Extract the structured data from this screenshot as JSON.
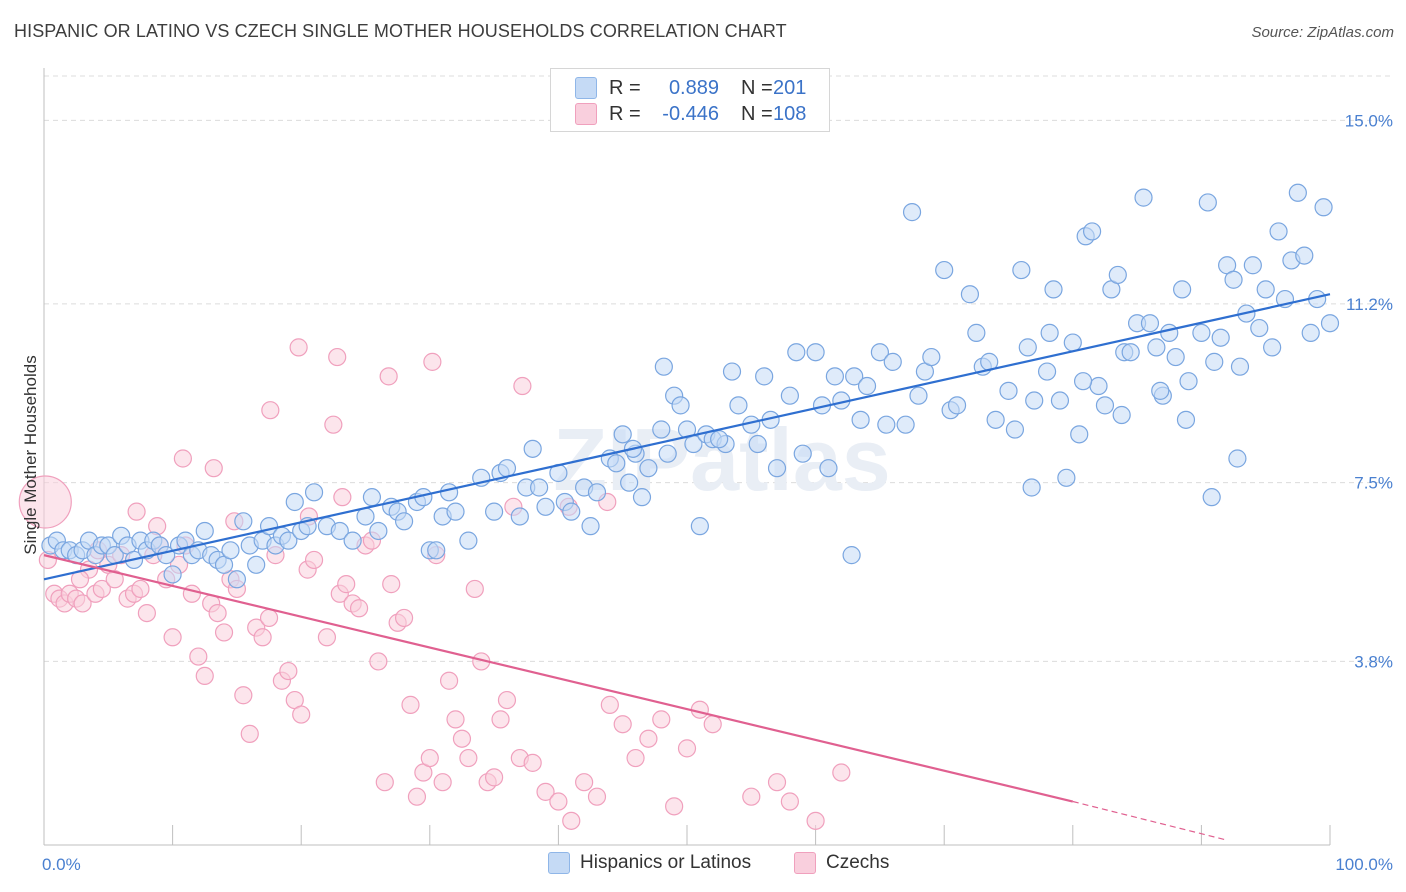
{
  "title": "HISPANIC OR LATINO VS CZECH SINGLE MOTHER HOUSEHOLDS CORRELATION CHART",
  "source": "Source: ZipAtlas.com",
  "watermark": "ZIPatlas",
  "legend": {
    "rows": [
      {
        "r_label": "R =",
        "r_value": "0.889",
        "n_label": "N =",
        "n_value": "201",
        "color": "#8fb6e8",
        "fill": "#c5daf5"
      },
      {
        "r_label": "R =",
        "r_value": "-0.446",
        "n_label": "N =",
        "n_value": "108",
        "color": "#f0a0bd",
        "fill": "#f9cfdd"
      }
    ]
  },
  "bottom_legend": [
    {
      "label": "Hispanics or Latinos",
      "fill": "#c5daf5",
      "stroke": "#8fb6e8"
    },
    {
      "label": "Czechs",
      "fill": "#f9cfdd",
      "stroke": "#f0a0bd"
    }
  ],
  "chart_data": {
    "type": "scatter",
    "title": "HISPANIC OR LATINO VS CZECH SINGLE MOTHER HOUSEHOLDS CORRELATION CHART",
    "xlabel": "",
    "ylabel": "Single Mother Households",
    "xlim": [
      0,
      100
    ],
    "ylim": [
      0,
      16
    ],
    "x_tick_labels": [
      "0.0%",
      "100.0%"
    ],
    "y_ticks": [
      3.8,
      7.5,
      11.2,
      15.0
    ],
    "y_tick_labels": [
      "3.8%",
      "7.5%",
      "11.2%",
      "15.0%"
    ],
    "grid": true,
    "series": [
      {
        "name": "Hispanics or Latinos",
        "color": "#4a86d8",
        "fill": "#c5daf5",
        "stroke": "#7aa6e0",
        "trend": {
          "x": [
            0,
            100
          ],
          "y": [
            5.5,
            11.4
          ],
          "color": "#2f6fd0"
        },
        "points": [
          [
            0.5,
            6.2
          ],
          [
            1,
            6.3
          ],
          [
            1.5,
            6.1
          ],
          [
            2,
            6.1
          ],
          [
            2.5,
            6.0
          ],
          [
            3,
            6.1
          ],
          [
            3.5,
            6.3
          ],
          [
            4,
            6.0
          ],
          [
            4.5,
            6.2
          ],
          [
            5,
            6.2
          ],
          [
            5.5,
            6.0
          ],
          [
            6,
            6.4
          ],
          [
            6.5,
            6.2
          ],
          [
            7,
            5.9
          ],
          [
            7.5,
            6.3
          ],
          [
            8,
            6.1
          ],
          [
            8.5,
            6.3
          ],
          [
            9,
            6.2
          ],
          [
            9.5,
            6.0
          ],
          [
            10,
            5.6
          ],
          [
            10.5,
            6.2
          ],
          [
            11,
            6.3
          ],
          [
            11.5,
            6.0
          ],
          [
            12,
            6.1
          ],
          [
            12.5,
            6.5
          ],
          [
            13,
            6.0
          ],
          [
            13.5,
            5.9
          ],
          [
            14,
            5.8
          ],
          [
            14.5,
            6.1
          ],
          [
            15,
            5.5
          ],
          [
            15.5,
            6.7
          ],
          [
            16,
            6.2
          ],
          [
            16.5,
            5.8
          ],
          [
            17,
            6.3
          ],
          [
            17.5,
            6.6
          ],
          [
            18,
            6.2
          ],
          [
            18.5,
            6.4
          ],
          [
            19,
            6.3
          ],
          [
            19.5,
            7.1
          ],
          [
            20,
            6.5
          ],
          [
            20.5,
            6.6
          ],
          [
            21,
            7.3
          ],
          [
            22,
            6.6
          ],
          [
            23,
            6.5
          ],
          [
            24,
            6.3
          ],
          [
            25,
            6.8
          ],
          [
            25.5,
            7.2
          ],
          [
            26,
            6.5
          ],
          [
            27,
            7.0
          ],
          [
            27.5,
            6.9
          ],
          [
            28,
            6.7
          ],
          [
            29,
            7.1
          ],
          [
            29.5,
            7.2
          ],
          [
            30,
            6.1
          ],
          [
            30.5,
            6.1
          ],
          [
            31,
            6.8
          ],
          [
            31.5,
            7.3
          ],
          [
            32,
            6.9
          ],
          [
            33,
            6.3
          ],
          [
            34,
            7.6
          ],
          [
            35,
            6.9
          ],
          [
            35.5,
            7.7
          ],
          [
            36,
            7.8
          ],
          [
            37,
            6.8
          ],
          [
            37.5,
            7.4
          ],
          [
            38,
            8.2
          ],
          [
            38.5,
            7.4
          ],
          [
            39,
            7.0
          ],
          [
            40,
            7.7
          ],
          [
            40.5,
            7.1
          ],
          [
            41,
            6.9
          ],
          [
            42,
            7.4
          ],
          [
            42.5,
            6.6
          ],
          [
            43,
            7.3
          ],
          [
            44,
            8.0
          ],
          [
            44.5,
            7.9
          ],
          [
            45,
            8.5
          ],
          [
            45.5,
            7.5
          ],
          [
            46,
            8.1
          ],
          [
            46.5,
            7.2
          ],
          [
            47,
            7.8
          ],
          [
            48,
            8.6
          ],
          [
            48.5,
            8.1
          ],
          [
            49,
            9.3
          ],
          [
            49.5,
            9.1
          ],
          [
            50,
            8.6
          ],
          [
            50.5,
            8.3
          ],
          [
            51,
            6.6
          ],
          [
            51.5,
            8.5
          ],
          [
            52,
            8.4
          ],
          [
            53,
            8.3
          ],
          [
            53.5,
            9.8
          ],
          [
            54,
            9.1
          ],
          [
            55,
            8.7
          ],
          [
            55.5,
            8.3
          ],
          [
            56,
            9.7
          ],
          [
            56.5,
            8.8
          ],
          [
            57,
            7.8
          ],
          [
            58,
            9.3
          ],
          [
            58.5,
            10.2
          ],
          [
            59,
            8.1
          ],
          [
            60,
            10.2
          ],
          [
            60.5,
            9.1
          ],
          [
            61,
            7.8
          ],
          [
            61.5,
            9.7
          ],
          [
            62,
            9.2
          ],
          [
            63,
            9.7
          ],
          [
            63.5,
            8.8
          ],
          [
            64,
            9.5
          ],
          [
            65,
            10.2
          ],
          [
            65.5,
            8.7
          ],
          [
            66,
            10.0
          ],
          [
            67,
            8.7
          ],
          [
            67.5,
            13.1
          ],
          [
            68,
            9.3
          ],
          [
            68.5,
            9.8
          ],
          [
            69,
            10.1
          ],
          [
            70,
            11.9
          ],
          [
            70.5,
            9.0
          ],
          [
            71,
            9.1
          ],
          [
            72,
            11.4
          ],
          [
            72.5,
            10.6
          ],
          [
            73,
            9.9
          ],
          [
            73.5,
            10.0
          ],
          [
            74,
            8.8
          ],
          [
            75,
            9.4
          ],
          [
            75.5,
            8.6
          ],
          [
            76,
            11.9
          ],
          [
            76.5,
            10.3
          ],
          [
            77,
            9.2
          ],
          [
            78,
            9.8
          ],
          [
            78.5,
            11.5
          ],
          [
            79,
            9.2
          ],
          [
            79.5,
            7.6
          ],
          [
            80,
            10.4
          ],
          [
            80.5,
            8.5
          ],
          [
            81,
            12.6
          ],
          [
            81.5,
            12.7
          ],
          [
            82,
            9.5
          ],
          [
            82.5,
            9.1
          ],
          [
            83,
            11.5
          ],
          [
            83.5,
            11.8
          ],
          [
            84,
            10.2
          ],
          [
            85,
            10.8
          ],
          [
            85.5,
            13.4
          ],
          [
            86,
            10.8
          ],
          [
            86.5,
            10.3
          ],
          [
            87,
            9.3
          ],
          [
            87.5,
            10.6
          ],
          [
            88,
            10.1
          ],
          [
            88.5,
            11.5
          ],
          [
            89,
            9.6
          ],
          [
            90,
            10.6
          ],
          [
            90.5,
            13.3
          ],
          [
            91,
            10.0
          ],
          [
            91.5,
            10.5
          ],
          [
            92,
            12.0
          ],
          [
            92.5,
            11.7
          ],
          [
            93,
            9.9
          ],
          [
            93.5,
            11.0
          ],
          [
            94,
            12.0
          ],
          [
            94.5,
            10.7
          ],
          [
            95,
            11.5
          ],
          [
            95.5,
            10.3
          ],
          [
            96,
            12.7
          ],
          [
            96.5,
            11.3
          ],
          [
            97,
            12.1
          ],
          [
            97.5,
            13.5
          ],
          [
            98,
            12.2
          ],
          [
            98.5,
            10.6
          ],
          [
            99,
            11.3
          ],
          [
            99.5,
            13.2
          ],
          [
            100,
            10.8
          ],
          [
            52.5,
            8.4
          ],
          [
            48.2,
            9.9
          ],
          [
            45.8,
            8.2
          ],
          [
            62.8,
            6.0
          ],
          [
            76.8,
            7.4
          ],
          [
            83.8,
            8.9
          ],
          [
            88.8,
            8.8
          ],
          [
            92.8,
            8.0
          ],
          [
            90.8,
            7.2
          ],
          [
            86.8,
            9.4
          ],
          [
            84.5,
            10.2
          ],
          [
            80.8,
            9.6
          ],
          [
            78.2,
            10.6
          ]
        ]
      },
      {
        "name": "Czechs",
        "color": "#e06090",
        "fill": "#f9cfdd",
        "stroke": "#f0a0bd",
        "trend": {
          "x": [
            0,
            80
          ],
          "y": [
            6.0,
            0.9
          ],
          "color": "#e06090"
        },
        "trend_dashed": {
          "x": [
            80,
            92
          ],
          "y": [
            0.9,
            0.1
          ]
        },
        "points": [
          [
            0.3,
            5.9
          ],
          [
            0.8,
            5.2
          ],
          [
            1.2,
            5.1
          ],
          [
            1.6,
            5.0
          ],
          [
            2,
            5.2
          ],
          [
            2.5,
            5.1
          ],
          [
            3,
            5.0
          ],
          [
            3.5,
            5.7
          ],
          [
            4,
            5.2
          ],
          [
            4.5,
            5.3
          ],
          [
            5,
            5.8
          ],
          [
            5.5,
            5.5
          ],
          [
            6,
            6.0
          ],
          [
            6.5,
            5.1
          ],
          [
            7,
            5.2
          ],
          [
            7.5,
            5.3
          ],
          [
            8,
            4.8
          ],
          [
            8.5,
            6.0
          ],
          [
            9,
            6.2
          ],
          [
            9.5,
            5.5
          ],
          [
            10,
            4.3
          ],
          [
            10.5,
            5.8
          ],
          [
            11,
            6.2
          ],
          [
            11.5,
            5.2
          ],
          [
            12,
            3.9
          ],
          [
            12.5,
            3.5
          ],
          [
            13,
            5.0
          ],
          [
            13.5,
            4.8
          ],
          [
            14,
            4.4
          ],
          [
            14.5,
            5.5
          ],
          [
            15,
            5.3
          ],
          [
            15.5,
            3.1
          ],
          [
            16,
            2.3
          ],
          [
            16.5,
            4.5
          ],
          [
            17,
            4.3
          ],
          [
            17.5,
            4.7
          ],
          [
            18,
            6.0
          ],
          [
            18.5,
            3.4
          ],
          [
            19,
            3.6
          ],
          [
            19.5,
            3.0
          ],
          [
            20,
            2.7
          ],
          [
            20.5,
            5.7
          ],
          [
            21,
            5.9
          ],
          [
            22,
            4.3
          ],
          [
            22.5,
            8.7
          ],
          [
            23,
            5.2
          ],
          [
            23.5,
            5.4
          ],
          [
            24,
            5.0
          ],
          [
            24.5,
            4.9
          ],
          [
            25,
            6.2
          ],
          [
            25.5,
            6.3
          ],
          [
            26,
            3.8
          ],
          [
            26.5,
            1.3
          ],
          [
            27,
            5.4
          ],
          [
            27.5,
            4.6
          ],
          [
            28,
            4.7
          ],
          [
            28.5,
            2.9
          ],
          [
            29,
            1.0
          ],
          [
            29.5,
            1.5
          ],
          [
            30,
            1.8
          ],
          [
            30.5,
            6.0
          ],
          [
            31,
            1.3
          ],
          [
            31.5,
            3.4
          ],
          [
            32,
            2.6
          ],
          [
            32.5,
            2.2
          ],
          [
            33,
            1.8
          ],
          [
            33.5,
            5.3
          ],
          [
            34,
            3.8
          ],
          [
            34.5,
            1.3
          ],
          [
            35,
            1.4
          ],
          [
            35.5,
            2.6
          ],
          [
            36,
            3.0
          ],
          [
            36.5,
            7.0
          ],
          [
            37,
            1.8
          ],
          [
            38,
            1.7
          ],
          [
            39,
            1.1
          ],
          [
            40,
            0.9
          ],
          [
            41,
            0.5
          ],
          [
            42,
            1.3
          ],
          [
            43,
            1.0
          ],
          [
            44,
            2.9
          ],
          [
            45,
            2.5
          ],
          [
            46,
            1.8
          ],
          [
            47,
            2.2
          ],
          [
            48,
            2.6
          ],
          [
            49,
            0.8
          ],
          [
            50,
            2.0
          ],
          [
            51,
            2.8
          ],
          [
            52,
            2.5
          ],
          [
            55,
            1.0
          ],
          [
            57,
            1.3
          ],
          [
            58,
            0.9
          ],
          [
            60,
            0.5
          ],
          [
            62,
            1.5
          ],
          [
            10.8,
            8.0
          ],
          [
            13.2,
            7.8
          ],
          [
            17.6,
            9.0
          ],
          [
            19.8,
            10.3
          ],
          [
            22.8,
            10.1
          ],
          [
            26.8,
            9.7
          ],
          [
            30.2,
            10.0
          ],
          [
            37.2,
            9.5
          ],
          [
            40.8,
            7.0
          ],
          [
            43.8,
            7.1
          ],
          [
            23.2,
            7.2
          ],
          [
            20.6,
            6.8
          ],
          [
            7.2,
            6.9
          ],
          [
            8.8,
            6.6
          ],
          [
            14.8,
            6.7
          ],
          [
            4.2,
            6.1
          ],
          [
            2.8,
            5.5
          ],
          [
            0.1,
            7.1
          ]
        ]
      }
    ]
  }
}
